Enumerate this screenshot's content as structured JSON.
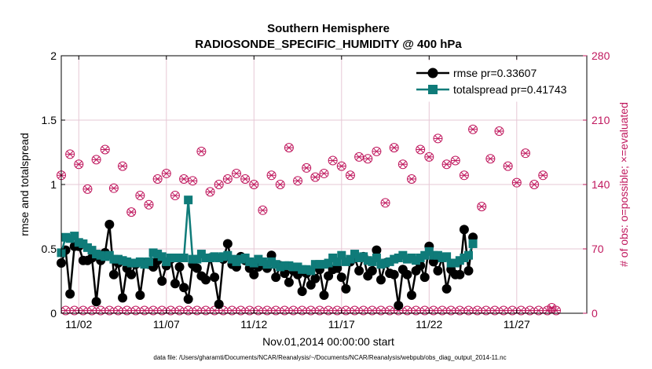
{
  "chart_data": {
    "type": "line",
    "title": "Southern Hemisphere",
    "subtitle": "RADIOSONDE_SPECIFIC_HUMIDITY @ 400 hPa",
    "xlabel": "Nov.01,2014 00:00:00 start",
    "ylabel": "rmse and totalspread",
    "ylabel_right": "# of obs: o=possible; ×=evaluated",
    "footnote": "data file: /Users/gharamti/Documents/NCAR/Reanalysis/~/Documents/NCAR/Reanalysis/webpub/obs_diag_output_2014-11.nc",
    "xlim": [
      1,
      31
    ],
    "ylim": [
      0,
      2
    ],
    "ylim_right": [
      0,
      280
    ],
    "xticks": [
      2,
      7,
      12,
      17,
      22,
      27
    ],
    "xtick_labels": [
      "11/02",
      "11/07",
      "11/12",
      "11/17",
      "11/22",
      "11/27"
    ],
    "yticks": [
      0,
      0.5,
      1,
      1.5,
      2
    ],
    "ytick_labels": [
      "0",
      "0.5",
      "1",
      "1.5",
      "2"
    ],
    "yticks_right": [
      0,
      70,
      140,
      210,
      280
    ],
    "ytick_labels_right": [
      "0",
      "70",
      "140",
      "210",
      "280"
    ],
    "grid": true,
    "legend_position": "top-right",
    "colors": {
      "rmse": "#000000",
      "totalspread": "#0f7b79",
      "obs": "#c0185e",
      "grid": "#e6c8d6"
    },
    "x_start": 1.0,
    "x_step": 0.25,
    "series": [
      {
        "name": "rmse pr=0.33607",
        "axis": "left",
        "marker": "circle",
        "values": [
          0.39,
          0.49,
          0.15,
          0.52,
          0.52,
          0.41,
          0.41,
          0.43,
          0.09,
          0.41,
          0.47,
          0.69,
          0.3,
          0.39,
          0.12,
          0.35,
          0.3,
          0.38,
          0.14,
          0.39,
          0.38,
          0.36,
          0.41,
          0.25,
          0.37,
          0.42,
          0.23,
          0.36,
          0.2,
          0.11,
          0.38,
          0.35,
          0.29,
          0.26,
          0.43,
          0.28,
          0.07,
          0.42,
          0.54,
          0.38,
          0.36,
          0.44,
          0.41,
          0.35,
          0.3,
          0.36,
          0.39,
          0.35,
          0.45,
          0.28,
          0.37,
          0.31,
          0.24,
          0.33,
          0.3,
          0.17,
          0.31,
          0.22,
          0.27,
          0.34,
          0.14,
          0.29,
          0.34,
          0.35,
          0.28,
          0.19,
          0.4,
          0.43,
          0.33,
          0.44,
          0.29,
          0.33,
          0.49,
          0.26,
          0.39,
          0.31,
          0.3,
          0.06,
          0.34,
          0.3,
          0.14,
          0.33,
          0.37,
          0.28,
          0.52,
          0.4,
          0.33,
          0.43,
          0.19,
          0.34,
          0.3,
          0.3,
          0.65,
          0.33,
          0.59
        ]
      },
      {
        "name": "totalspread pr=0.41743",
        "axis": "left",
        "marker": "square",
        "values": [
          0.47,
          0.59,
          0.58,
          0.6,
          0.55,
          0.54,
          0.51,
          0.49,
          0.46,
          0.45,
          0.44,
          0.45,
          0.42,
          0.42,
          0.41,
          0.4,
          0.39,
          0.39,
          0.4,
          0.38,
          0.4,
          0.47,
          0.46,
          0.44,
          0.4,
          0.43,
          0.43,
          0.43,
          0.43,
          0.88,
          0.42,
          0.42,
          0.46,
          0.43,
          0.43,
          0.44,
          0.43,
          0.44,
          0.45,
          0.42,
          0.4,
          0.42,
          0.43,
          0.4,
          0.39,
          0.42,
          0.4,
          0.38,
          0.4,
          0.38,
          0.36,
          0.37,
          0.37,
          0.36,
          0.36,
          0.34,
          0.34,
          0.33,
          0.38,
          0.38,
          0.38,
          0.39,
          0.43,
          0.4,
          0.45,
          0.4,
          0.42,
          0.46,
          0.43,
          0.44,
          0.41,
          0.4,
          0.43,
          0.38,
          0.39,
          0.4,
          0.42,
          0.43,
          0.45,
          0.42,
          0.43,
          0.41,
          0.43,
          0.45,
          0.48,
          0.45,
          0.45,
          0.43,
          0.44,
          0.39,
          0.39,
          0.41,
          0.43,
          0.45,
          0.54
        ]
      },
      {
        "name": "possible obs",
        "axis": "right",
        "marker": "circle-open",
        "values": [
          150,
          3,
          173,
          3,
          162,
          3,
          135,
          3,
          167,
          3,
          178,
          3,
          136,
          3,
          160,
          3,
          110,
          3,
          128,
          3,
          118,
          3,
          146,
          3,
          152,
          3,
          128,
          3,
          146,
          3,
          144,
          3,
          176,
          3,
          132,
          3,
          140,
          3,
          146,
          3,
          152,
          3,
          146,
          3,
          140,
          3,
          112,
          3,
          150,
          3,
          140,
          3,
          180,
          3,
          144,
          3,
          158,
          3,
          148,
          3,
          152,
          3,
          166,
          3,
          160,
          3,
          150,
          3,
          170,
          3,
          168,
          3,
          176,
          3,
          120,
          3,
          180,
          3,
          162,
          3,
          146,
          3,
          178,
          3,
          170,
          3,
          190,
          3,
          162,
          3,
          166,
          3,
          150,
          3,
          200,
          3,
          116,
          3,
          168,
          3,
          198,
          3,
          160,
          3,
          142,
          3,
          174,
          3,
          140,
          3,
          150,
          3,
          6,
          3
        ]
      },
      {
        "name": "evaluated obs",
        "axis": "right",
        "marker": "x",
        "values": [
          150,
          3,
          173,
          3,
          162,
          3,
          135,
          3,
          167,
          3,
          178,
          3,
          136,
          3,
          160,
          3,
          110,
          3,
          128,
          3,
          118,
          3,
          146,
          3,
          152,
          3,
          128,
          3,
          146,
          3,
          144,
          3,
          176,
          3,
          132,
          3,
          140,
          3,
          146,
          3,
          152,
          3,
          146,
          3,
          140,
          3,
          112,
          3,
          150,
          3,
          140,
          3,
          180,
          3,
          144,
          3,
          158,
          3,
          148,
          3,
          152,
          3,
          166,
          3,
          160,
          3,
          150,
          3,
          170,
          3,
          168,
          3,
          176,
          3,
          120,
          3,
          180,
          3,
          162,
          3,
          146,
          3,
          178,
          3,
          170,
          3,
          190,
          3,
          162,
          3,
          166,
          3,
          150,
          3,
          200,
          3,
          116,
          3,
          168,
          3,
          198,
          3,
          160,
          3,
          142,
          3,
          174,
          3,
          140,
          3,
          150,
          3,
          6,
          3
        ]
      }
    ]
  }
}
